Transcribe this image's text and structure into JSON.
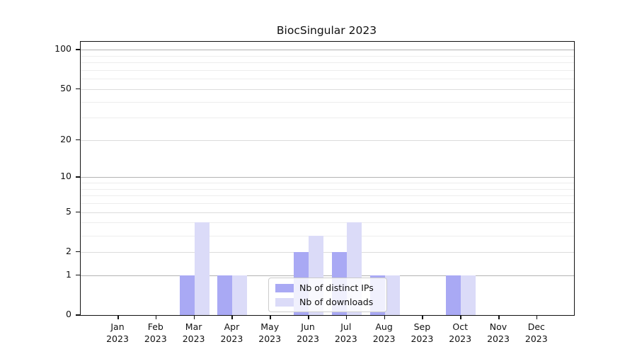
{
  "chart_data": {
    "type": "bar",
    "title": "BiocSingular 2023",
    "background": "#ffffff",
    "y_axis": {
      "scale": "log1p",
      "tick_labels": [
        0,
        1,
        2,
        5,
        10,
        20,
        50,
        100
      ],
      "minor_ticks": [
        3,
        4,
        6,
        7,
        8,
        9,
        30,
        40,
        60,
        70,
        80,
        90
      ],
      "decade_ticks": [
        1,
        10,
        100
      ],
      "ylim": [
        0,
        115
      ],
      "grid": "on"
    },
    "x_axis": {
      "categories": [
        {
          "month": "Jan",
          "year": "2023"
        },
        {
          "month": "Feb",
          "year": "2023"
        },
        {
          "month": "Mar",
          "year": "2023"
        },
        {
          "month": "Apr",
          "year": "2023"
        },
        {
          "month": "May",
          "year": "2023"
        },
        {
          "month": "Jun",
          "year": "2023"
        },
        {
          "month": "Jul",
          "year": "2023"
        },
        {
          "month": "Aug",
          "year": "2023"
        },
        {
          "month": "Sep",
          "year": "2023"
        },
        {
          "month": "Oct",
          "year": "2023"
        },
        {
          "month": "Nov",
          "year": "2023"
        },
        {
          "month": "Dec",
          "year": "2023"
        }
      ]
    },
    "series": [
      {
        "name": "Nb of distinct IPs",
        "color": "#a9a9f4",
        "values": [
          0,
          0,
          1,
          1,
          0,
          2,
          2,
          1,
          0,
          1,
          0,
          0
        ]
      },
      {
        "name": "Nb of downloads",
        "color": "#dbdbf8",
        "values": [
          0,
          0,
          4,
          1,
          0,
          3,
          4,
          1,
          0,
          1,
          0,
          0
        ]
      }
    ],
    "legend": {
      "position": "lower center"
    }
  }
}
